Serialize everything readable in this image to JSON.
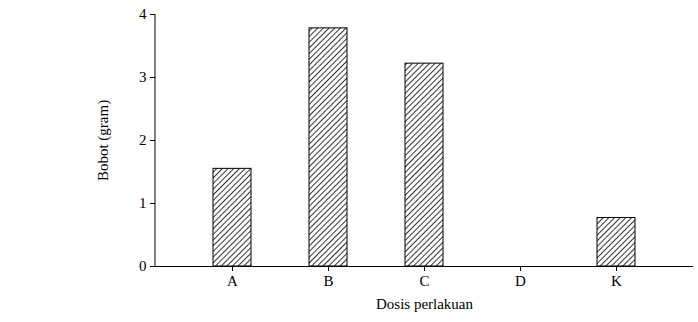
{
  "chart_data": {
    "type": "bar",
    "x_label": "Dosis perlakuan",
    "y_label": "Bobot (gram)",
    "categories": [
      "A",
      "B",
      "C",
      "D",
      "K"
    ],
    "values": [
      1.55,
      3.78,
      3.22,
      0,
      0.77
    ],
    "color": "#000000",
    "ylim": [
      0,
      4
    ],
    "yticks": [
      0,
      1,
      2,
      3,
      4
    ],
    "grid": false
  }
}
